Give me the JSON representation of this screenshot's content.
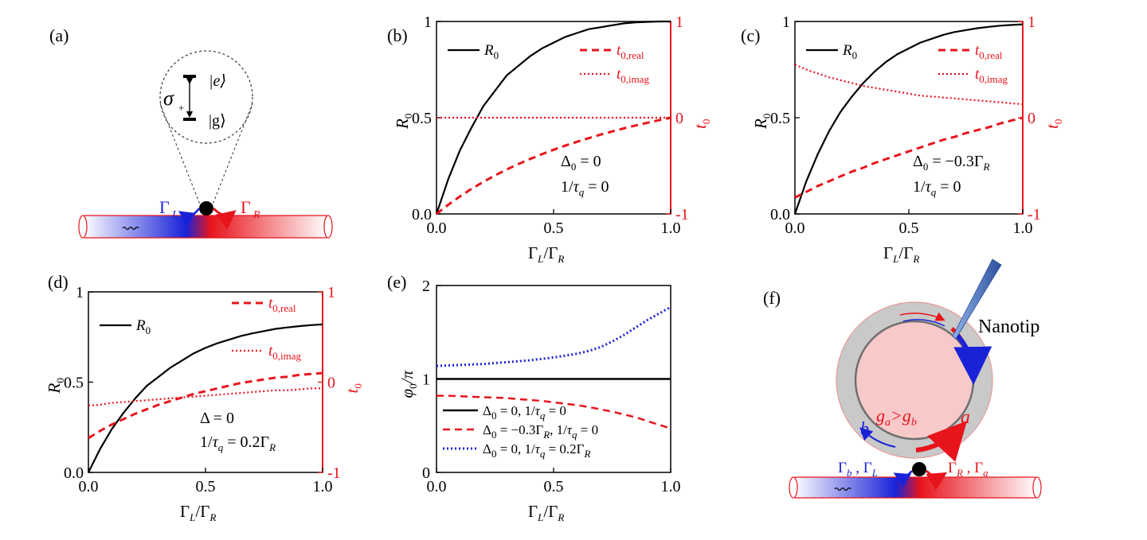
{
  "figure": {
    "panel_labels": [
      "(a)",
      "(b)",
      "(c)",
      "(d)",
      "(e)",
      "(f)"
    ]
  },
  "schematic_a": {
    "sigma": "σ",
    "sigma_sub": "+",
    "state_e": "|e⟩",
    "state_g": "|g⟩",
    "gamma_L": "Γ",
    "gamma_L_sub": "L",
    "gamma_R": "Γ",
    "gamma_R_sub": "R"
  },
  "schematic_f": {
    "nanotip_label": "Nanotip",
    "mode_a": "a",
    "mode_b": "b",
    "coupling": "ga>gb",
    "left_rates": "Γb , ΓL",
    "right_rates": "ΓR , Γa"
  },
  "colors": {
    "black": "#000000",
    "red": "#e8141c",
    "blue": "#1a22d8"
  },
  "chart_data": [
    {
      "panel": "(b)",
      "type": "line",
      "xlabel": "ΓL/ΓR",
      "ylabel_left": "R0",
      "ylabel_right": "t0",
      "xlim": [
        0,
        1
      ],
      "ylim_left": [
        0,
        1
      ],
      "ylim_right": [
        -1,
        1
      ],
      "x_ticks": [
        "0.0",
        "0.5",
        "1.0"
      ],
      "y_ticks_left": [
        "0.0",
        "0.5",
        "1"
      ],
      "y_ticks_right": [
        "-1",
        "0",
        "1"
      ],
      "legend": [
        "R0",
        "t0,real",
        "t0,imag"
      ],
      "annotations": [
        "Δ0 = 0",
        "1/τq = 0"
      ],
      "x": [
        0,
        0.05,
        0.1,
        0.15,
        0.2,
        0.25,
        0.3,
        0.35,
        0.4,
        0.45,
        0.5,
        0.55,
        0.6,
        0.65,
        0.7,
        0.75,
        0.8,
        0.85,
        0.9,
        0.95,
        1.0
      ],
      "series": [
        {
          "name": "R0",
          "axis": "left",
          "style": "solid",
          "color": "#000000",
          "values": [
            0,
            0.18,
            0.33,
            0.45,
            0.56,
            0.64,
            0.72,
            0.77,
            0.82,
            0.86,
            0.89,
            0.92,
            0.94,
            0.96,
            0.97,
            0.98,
            0.99,
            0.995,
            0.998,
            1.0,
            1.0
          ]
        },
        {
          "name": "t0,real",
          "axis": "right",
          "style": "dashed",
          "color": "#e8141c",
          "values": [
            -1.0,
            -0.905,
            -0.818,
            -0.739,
            -0.667,
            -0.6,
            -0.538,
            -0.481,
            -0.429,
            -0.379,
            -0.333,
            -0.29,
            -0.25,
            -0.212,
            -0.176,
            -0.143,
            -0.111,
            -0.081,
            -0.053,
            -0.026,
            0.0
          ]
        },
        {
          "name": "t0,imag",
          "axis": "right",
          "style": "dotted",
          "color": "#e8141c",
          "values": [
            0,
            0,
            0,
            0,
            0,
            0,
            0,
            0,
            0,
            0,
            0,
            0,
            0,
            0,
            0,
            0,
            0,
            0,
            0,
            0,
            0
          ]
        }
      ]
    },
    {
      "panel": "(c)",
      "type": "line",
      "xlabel": "ΓL/ΓR",
      "ylabel_left": "R0",
      "ylabel_right": "t0",
      "xlim": [
        0,
        1
      ],
      "ylim_left": [
        0,
        1
      ],
      "ylim_right": [
        -1,
        1
      ],
      "x_ticks": [
        "0.0",
        "0.5",
        "1.0"
      ],
      "y_ticks_left": [
        "0.0",
        "0.5",
        "1"
      ],
      "y_ticks_right": [
        "-1",
        "0",
        "1"
      ],
      "legend": [
        "R0",
        "t0,real",
        "t0,imag"
      ],
      "annotations": [
        "Δ0 = −0.3ΓR",
        "1/τq = 0"
      ],
      "x": [
        0,
        0.05,
        0.1,
        0.15,
        0.2,
        0.25,
        0.3,
        0.35,
        0.4,
        0.45,
        0.5,
        0.55,
        0.6,
        0.65,
        0.7,
        0.75,
        0.8,
        0.85,
        0.9,
        0.95,
        1.0
      ],
      "series": [
        {
          "name": "R0",
          "axis": "left",
          "style": "solid",
          "color": "#000000",
          "values": [
            0,
            0.17,
            0.31,
            0.43,
            0.53,
            0.61,
            0.68,
            0.74,
            0.79,
            0.83,
            0.86,
            0.89,
            0.91,
            0.93,
            0.945,
            0.955,
            0.965,
            0.972,
            0.978,
            0.982,
            0.985
          ]
        },
        {
          "name": "t0,real",
          "axis": "right",
          "style": "dashed",
          "color": "#e8141c",
          "values": [
            -0.83,
            -0.77,
            -0.71,
            -0.66,
            -0.61,
            -0.56,
            -0.52,
            -0.47,
            -0.43,
            -0.39,
            -0.35,
            -0.31,
            -0.27,
            -0.23,
            -0.2,
            -0.16,
            -0.13,
            -0.1,
            -0.06,
            -0.03,
            0.0
          ]
        },
        {
          "name": "t0,imag",
          "axis": "right",
          "style": "dotted",
          "color": "#e8141c",
          "values": [
            0.55,
            0.5,
            0.46,
            0.42,
            0.39,
            0.36,
            0.33,
            0.31,
            0.29,
            0.27,
            0.25,
            0.23,
            0.22,
            0.21,
            0.2,
            0.19,
            0.18,
            0.17,
            0.16,
            0.15,
            0.14
          ]
        }
      ]
    },
    {
      "panel": "(d)",
      "type": "line",
      "xlabel": "ΓL/ΓR",
      "ylabel_left": "R0",
      "ylabel_right": "t0",
      "xlim": [
        0,
        1
      ],
      "ylim_left": [
        0,
        1
      ],
      "ylim_right": [
        -1,
        1
      ],
      "x_ticks": [
        "0.0",
        "0.5",
        "1.0"
      ],
      "y_ticks_left": [
        "0.0",
        "0.5",
        "1"
      ],
      "y_ticks_right": [
        "-1",
        "0",
        "1"
      ],
      "legend": [
        "R0",
        "t0,real",
        "t0,imag"
      ],
      "annotations": [
        "Δ = 0",
        "1/τq = 0.2ΓR"
      ],
      "x": [
        0,
        0.05,
        0.1,
        0.15,
        0.2,
        0.25,
        0.3,
        0.35,
        0.4,
        0.45,
        0.5,
        0.55,
        0.6,
        0.65,
        0.7,
        0.75,
        0.8,
        0.85,
        0.9,
        0.95,
        1.0
      ],
      "series": [
        {
          "name": "R0",
          "axis": "left",
          "style": "solid",
          "color": "#000000",
          "values": [
            0,
            0.13,
            0.24,
            0.33,
            0.41,
            0.48,
            0.53,
            0.58,
            0.62,
            0.66,
            0.69,
            0.715,
            0.735,
            0.755,
            0.77,
            0.783,
            0.795,
            0.803,
            0.81,
            0.816,
            0.82
          ]
        },
        {
          "name": "t0,real",
          "axis": "right",
          "style": "dashed",
          "color": "#e8141c",
          "values": [
            -0.62,
            -0.54,
            -0.47,
            -0.41,
            -0.35,
            -0.3,
            -0.25,
            -0.21,
            -0.17,
            -0.13,
            -0.1,
            -0.07,
            -0.04,
            -0.01,
            0.01,
            0.03,
            0.05,
            0.06,
            0.08,
            0.09,
            0.1
          ]
        },
        {
          "name": "t0,imag",
          "axis": "right",
          "style": "dotted",
          "color": "#e8141c",
          "values": [
            -0.26,
            -0.25,
            -0.23,
            -0.22,
            -0.21,
            -0.2,
            -0.19,
            -0.18,
            -0.17,
            -0.16,
            -0.15,
            -0.14,
            -0.13,
            -0.12,
            -0.11,
            -0.1,
            -0.09,
            -0.09,
            -0.08,
            -0.07,
            -0.07
          ]
        }
      ]
    },
    {
      "panel": "(e)",
      "type": "line",
      "xlabel": "ΓL/ΓR",
      "ylabel": "φ0/π",
      "xlim": [
        0,
        1
      ],
      "ylim": [
        0,
        2
      ],
      "x_ticks": [
        "0.0",
        "0.5",
        "1.0"
      ],
      "y_ticks": [
        "0",
        "1",
        "2"
      ],
      "legend": [
        "Δ0 = 0,  1/τq = 0",
        "Δ0 = −0.3ΓR,  1/τq = 0",
        "Δ0 = 0,  1/τq = 0.2ΓR"
      ],
      "x": [
        0,
        0.05,
        0.1,
        0.15,
        0.2,
        0.25,
        0.3,
        0.35,
        0.4,
        0.45,
        0.5,
        0.55,
        0.6,
        0.65,
        0.7,
        0.75,
        0.8,
        0.85,
        0.9,
        0.95,
        1.0
      ],
      "series": [
        {
          "name": "Δ0 = 0,  1/τq = 0",
          "style": "solid",
          "color": "#000000",
          "values": [
            1,
            1,
            1,
            1,
            1,
            1,
            1,
            1,
            1,
            1,
            1,
            1,
            1,
            1,
            1,
            1,
            1,
            1,
            1,
            1,
            1
          ]
        },
        {
          "name": "Δ0 = −0.3ΓR,  1/τq = 0",
          "style": "dashed",
          "color": "#e8141c",
          "values": [
            0.82,
            0.82,
            0.815,
            0.81,
            0.805,
            0.8,
            0.795,
            0.785,
            0.775,
            0.765,
            0.75,
            0.735,
            0.72,
            0.7,
            0.675,
            0.65,
            0.62,
            0.59,
            0.55,
            0.51,
            0.47
          ]
        },
        {
          "name": "Δ0 = 0,  1/τq = 0.2ΓR",
          "style": "dotted",
          "color": "#1a22d8",
          "values": [
            1.14,
            1.145,
            1.15,
            1.155,
            1.16,
            1.17,
            1.18,
            1.19,
            1.2,
            1.215,
            1.23,
            1.25,
            1.27,
            1.3,
            1.34,
            1.4,
            1.47,
            1.55,
            1.63,
            1.7,
            1.77
          ]
        }
      ]
    }
  ]
}
